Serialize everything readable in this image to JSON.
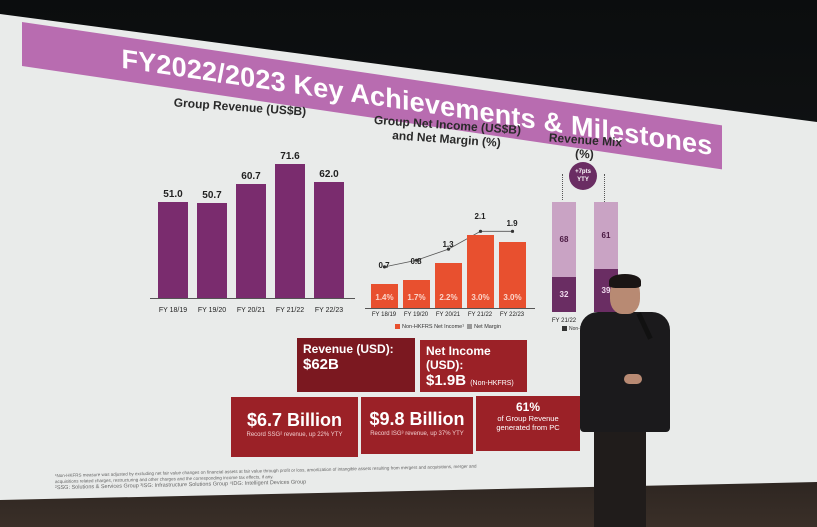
{
  "slide": {
    "title": "FY2022/2023 Key Achievements & Milestones",
    "title_band_color": "#b86cb0"
  },
  "charts": {
    "revenue": {
      "title": "Group Revenue (US$B)"
    },
    "net_income": {
      "title_line1": "Group Net Income (US$B)",
      "title_line2": "and Net Margin (%)",
      "legend_income": "Non-HKFRS Net Income¹",
      "legend_margin": "Net Margin"
    },
    "mix": {
      "title": "Revenue Mix (%)",
      "badge_line1": "+7pts",
      "badge_line2": "YTY",
      "legend": "Non-PC"
    }
  },
  "chart_data": [
    {
      "type": "bar",
      "title": "Group Revenue (US$B)",
      "categories": [
        "FY 18/19",
        "FY 19/20",
        "FY 20/21",
        "FY 21/22",
        "FY 22/23"
      ],
      "values": [
        51.0,
        50.7,
        60.7,
        71.6,
        62.0
      ],
      "labels": [
        "51.0",
        "50.7",
        "60.7",
        "71.6",
        "62.0"
      ],
      "color": "#7a2c6e",
      "xlabel": "",
      "ylabel": "US$B",
      "ylim": [
        0,
        80
      ],
      "grid": false
    },
    {
      "type": "bar",
      "title": "Group Net Income (US$B) and Net Margin (%)",
      "categories": [
        "FY 18/19",
        "FY 19/20",
        "FY 20/21",
        "FY 21/22",
        "FY 22/23"
      ],
      "series": [
        {
          "name": "Non-HKFRS Net Income",
          "values": [
            0.7,
            0.8,
            1.3,
            2.1,
            1.9
          ],
          "labels": [
            "0.7",
            "0.8",
            "1.3",
            "2.1",
            "1.9"
          ],
          "color": "#e8502f"
        },
        {
          "name": "Net Margin",
          "values": [
            1.4,
            1.7,
            2.2,
            3.0,
            3.0
          ],
          "labels": [
            "1.4%",
            "1.7%",
            "2.2%",
            "3.0%",
            "3.0%"
          ],
          "type": "line"
        }
      ],
      "legend_position": "bottom"
    },
    {
      "type": "bar",
      "stacked": true,
      "title": "Revenue Mix (%)",
      "categories": [
        "FY 21/22",
        "FY 22/23"
      ],
      "series": [
        {
          "name": "Non-PC",
          "values": [
            32,
            39
          ],
          "color": "#6a2d63"
        },
        {
          "name": "PC",
          "values": [
            68,
            61
          ],
          "color": "#c9a3c4"
        }
      ],
      "annotations": [
        "+7pts YTY"
      ],
      "ylim": [
        0,
        100
      ]
    }
  ],
  "kpis": {
    "revenue": {
      "label": "Revenue (USD):",
      "value": "$62B"
    },
    "net_income": {
      "label": "Net Income (USD):",
      "value": "$1.9B",
      "note": "(Non-HKFRS)"
    },
    "ssg": {
      "value": "$6.7 Billion",
      "sub": "Record SSG² revenue, up 22% YTY"
    },
    "isg": {
      "value": "$9.8 Billion",
      "sub": "Record ISG³ revenue, up 37% YTY"
    },
    "pc": {
      "value": "61%",
      "sub1": "of Group Revenue",
      "sub2": "generated from PC"
    }
  },
  "footnotes": {
    "line1": "¹Non-HKFRS measure was adjusted by excluding net fair value changes on financial assets at fair value through profit or loss, amortization of intangible assets resulting from mergers and acquisitions, merger and",
    "line2": "acquisitions related charges, restructuring and other charges and the corresponding income tax effects, if any.",
    "line3": "²SSG: Solutions & Services Group   ³ISG: Infrastructure Solutions Group   ⁴IDG: Intelligent Devices Group"
  }
}
